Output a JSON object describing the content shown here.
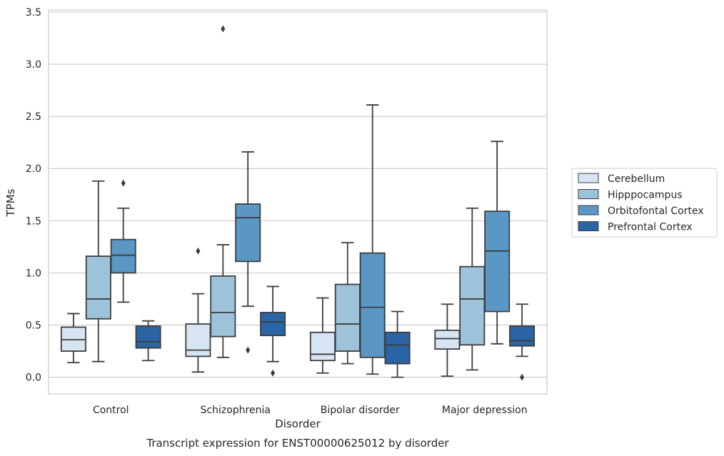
{
  "chart_data": {
    "type": "box",
    "xlabel": "Disorder",
    "ylabel": "TPMs",
    "caption": "Transcript expression for ENST00000625012 by disorder",
    "ylim": [
      -0.16,
      3.52
    ],
    "yticks": [
      "0.0",
      "0.5",
      "1.0",
      "1.5",
      "2.0",
      "2.5",
      "3.0",
      "3.5"
    ],
    "ytick_values": [
      0,
      0.5,
      1.0,
      1.5,
      2.0,
      2.5,
      3.0,
      3.5
    ],
    "grid": "horizontal",
    "legend_position": "right",
    "categories": [
      "Control",
      "Schizophrenia",
      "Bipolar disorder",
      "Major depression"
    ],
    "series": [
      {
        "name": "Cerebellum",
        "color": "#d6e4f3",
        "boxes": [
          {
            "whislo": 0.14,
            "q1": 0.25,
            "med": 0.36,
            "q3": 0.48,
            "whishi": 0.61,
            "fliers": []
          },
          {
            "whislo": 0.05,
            "q1": 0.2,
            "med": 0.26,
            "q3": 0.51,
            "whishi": 0.8,
            "fliers": [
              1.21
            ]
          },
          {
            "whislo": 0.04,
            "q1": 0.16,
            "med": 0.22,
            "q3": 0.43,
            "whishi": 0.76,
            "fliers": []
          },
          {
            "whislo": 0.01,
            "q1": 0.27,
            "med": 0.37,
            "q3": 0.45,
            "whishi": 0.7,
            "fliers": []
          }
        ]
      },
      {
        "name": "Hipppocampus",
        "color": "#9dc3db",
        "boxes": [
          {
            "whislo": 0.15,
            "q1": 0.56,
            "med": 0.75,
            "q3": 1.16,
            "whishi": 1.88,
            "fliers": []
          },
          {
            "whislo": 0.19,
            "q1": 0.39,
            "med": 0.62,
            "q3": 0.97,
            "whishi": 1.27,
            "fliers": [
              3.34
            ]
          },
          {
            "whislo": 0.13,
            "q1": 0.25,
            "med": 0.51,
            "q3": 0.89,
            "whishi": 1.29,
            "fliers": []
          },
          {
            "whislo": 0.07,
            "q1": 0.31,
            "med": 0.75,
            "q3": 1.06,
            "whishi": 1.62,
            "fliers": []
          }
        ]
      },
      {
        "name": "Orbitofontal Cortex",
        "color": "#5a97c5",
        "boxes": [
          {
            "whislo": 0.72,
            "q1": 1.0,
            "med": 1.17,
            "q3": 1.32,
            "whishi": 1.62,
            "fliers": [
              1.86
            ]
          },
          {
            "whislo": 0.68,
            "q1": 1.11,
            "med": 1.53,
            "q3": 1.66,
            "whishi": 2.16,
            "fliers": [
              0.26
            ]
          },
          {
            "whislo": 0.03,
            "q1": 0.19,
            "med": 0.67,
            "q3": 1.19,
            "whishi": 2.61,
            "fliers": []
          },
          {
            "whislo": 0.32,
            "q1": 0.63,
            "med": 1.21,
            "q3": 1.59,
            "whishi": 2.26,
            "fliers": []
          }
        ]
      },
      {
        "name": "Prefrontal Cortex",
        "color": "#2a64a4",
        "boxes": [
          {
            "whislo": 0.16,
            "q1": 0.28,
            "med": 0.34,
            "q3": 0.49,
            "whishi": 0.54,
            "fliers": []
          },
          {
            "whislo": 0.15,
            "q1": 0.4,
            "med": 0.53,
            "q3": 0.62,
            "whishi": 0.87,
            "fliers": [
              0.04
            ]
          },
          {
            "whislo": 0.0,
            "q1": 0.13,
            "med": 0.31,
            "q3": 0.43,
            "whishi": 0.63,
            "fliers": []
          },
          {
            "whislo": 0.2,
            "q1": 0.3,
            "med": 0.35,
            "q3": 0.49,
            "whishi": 0.7,
            "fliers": [
              0.0
            ]
          }
        ]
      }
    ]
  }
}
